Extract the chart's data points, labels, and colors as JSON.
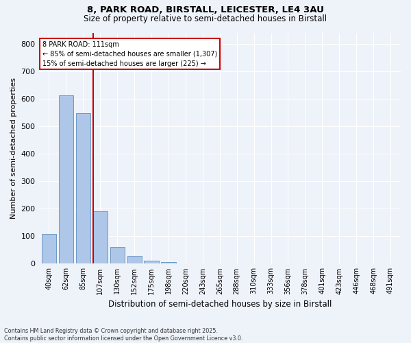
{
  "title1": "8, PARK ROAD, BIRSTALL, LEICESTER, LE4 3AU",
  "title2": "Size of property relative to semi-detached houses in Birstall",
  "xlabel": "Distribution of semi-detached houses by size in Birstall",
  "ylabel": "Number of semi-detached properties",
  "bar_labels": [
    "40sqm",
    "62sqm",
    "85sqm",
    "107sqm",
    "130sqm",
    "152sqm",
    "175sqm",
    "198sqm",
    "220sqm",
    "243sqm",
    "265sqm",
    "288sqm",
    "310sqm",
    "333sqm",
    "356sqm",
    "378sqm",
    "401sqm",
    "423sqm",
    "446sqm",
    "468sqm",
    "491sqm"
  ],
  "bar_values": [
    109,
    611,
    547,
    190,
    62,
    29,
    10,
    6,
    0,
    0,
    0,
    0,
    0,
    0,
    0,
    0,
    0,
    0,
    0,
    0,
    0
  ],
  "bar_color": "#aec6e8",
  "bar_edge_color": "#5a8fc2",
  "annotation_text1": "8 PARK ROAD: 111sqm",
  "annotation_text2": "← 85% of semi-detached houses are smaller (1,307)",
  "annotation_text3": "15% of semi-detached houses are larger (225) →",
  "red_line_color": "#cc0000",
  "annotation_box_color": "#cc0000",
  "ylim": [
    0,
    840
  ],
  "yticks": [
    0,
    100,
    200,
    300,
    400,
    500,
    600,
    700,
    800
  ],
  "background_color": "#eef2f9",
  "grid_color": "#ffffff",
  "footer1": "Contains HM Land Registry data © Crown copyright and database right 2025.",
  "footer2": "Contains public sector information licensed under the Open Government Licence v3.0."
}
